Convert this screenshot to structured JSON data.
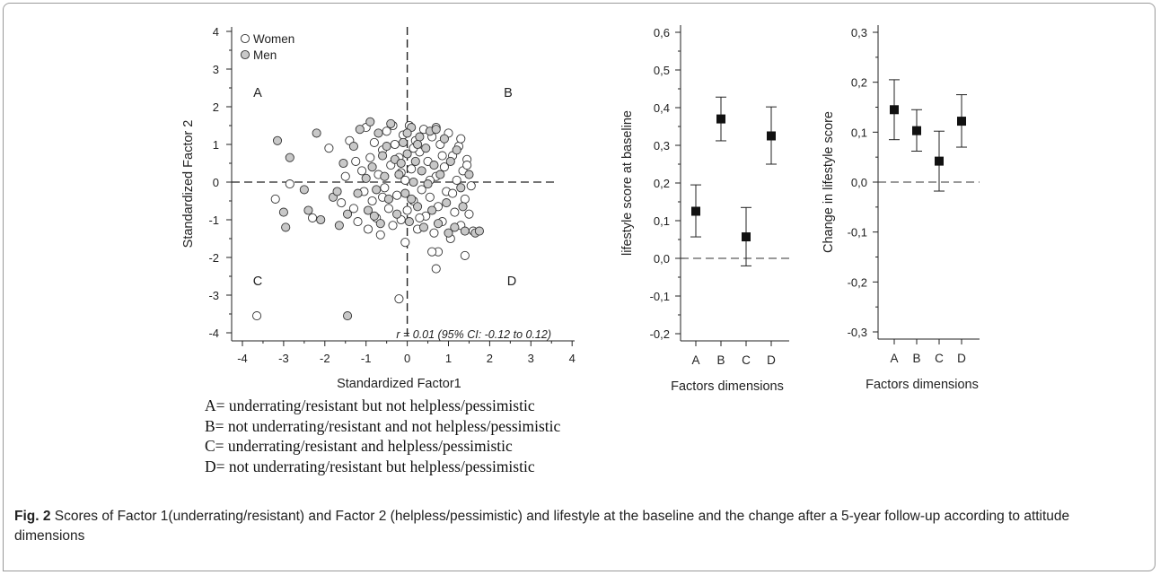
{
  "chart_data": [
    {
      "type": "scatter",
      "xlabel": "Standardized Factor1",
      "ylabel": "Standardized Factor 2",
      "xlim": [
        -4.2,
        3.6
      ],
      "ylim": [
        -4.2,
        4.2
      ],
      "xticks": [
        "-4",
        "-3",
        "-2",
        "-1",
        "0",
        "1",
        "2",
        "3",
        "4"
      ],
      "yticks": [
        "4",
        "3",
        "2",
        "1",
        "0",
        "-1",
        "-2",
        "-3",
        "-4"
      ],
      "legend": [
        {
          "label": "Women",
          "color": "#ffffff"
        },
        {
          "label": "Men",
          "color": "#c8c8c8"
        }
      ],
      "legend_position": "top-left",
      "quadrant_labels": [
        "A",
        "B",
        "C",
        "D"
      ],
      "annotation": "r = 0.01 (95% CI: -0.12 to 0.12)",
      "reference_lines": {
        "x": 0,
        "y": 0,
        "style": "dashed"
      },
      "series": [
        {
          "name": "Women",
          "points": [
            [
              -3.65,
              -3.55
            ],
            [
              -0.2,
              -3.1
            ],
            [
              -0.05,
              -1.6
            ],
            [
              0.7,
              -2.3
            ],
            [
              0.75,
              -1.85
            ],
            [
              0.6,
              -1.85
            ],
            [
              1.4,
              -1.95
            ],
            [
              -3.2,
              -0.45
            ],
            [
              -2.85,
              -0.05
            ],
            [
              -2.3,
              -0.95
            ],
            [
              -1.9,
              0.9
            ],
            [
              -1.6,
              -0.55
            ],
            [
              -1.5,
              0.15
            ],
            [
              -1.4,
              1.1
            ],
            [
              -1.3,
              -0.7
            ],
            [
              -1.25,
              0.55
            ],
            [
              -1.2,
              -1.05
            ],
            [
              -1.1,
              0.3
            ],
            [
              -1.05,
              -0.25
            ],
            [
              -1.0,
              1.45
            ],
            [
              -0.95,
              -1.25
            ],
            [
              -0.9,
              0.65
            ],
            [
              -0.85,
              -0.5
            ],
            [
              -0.8,
              1.05
            ],
            [
              -0.75,
              -0.95
            ],
            [
              -0.7,
              0.2
            ],
            [
              -0.65,
              -1.4
            ],
            [
              -0.6,
              0.85
            ],
            [
              -0.55,
              -0.15
            ],
            [
              -0.5,
              1.35
            ],
            [
              -0.45,
              -0.7
            ],
            [
              -0.4,
              0.45
            ],
            [
              -0.35,
              -1.15
            ],
            [
              -0.3,
              1.0
            ],
            [
              -0.25,
              -0.35
            ],
            [
              -0.2,
              0.65
            ],
            [
              -0.15,
              -1.0
            ],
            [
              -0.1,
              1.25
            ],
            [
              -0.05,
              0.05
            ],
            [
              0.0,
              -0.75
            ],
            [
              0.05,
              1.5
            ],
            [
              0.1,
              0.35
            ],
            [
              0.15,
              -0.5
            ],
            [
              0.2,
              1.1
            ],
            [
              0.25,
              -1.25
            ],
            [
              0.3,
              0.8
            ],
            [
              0.35,
              -0.2
            ],
            [
              0.4,
              1.4
            ],
            [
              0.45,
              -0.9
            ],
            [
              0.5,
              0.55
            ],
            [
              0.55,
              -0.4
            ],
            [
              0.6,
              1.2
            ],
            [
              0.65,
              -1.35
            ],
            [
              0.7,
              0.15
            ],
            [
              0.75,
              -0.65
            ],
            [
              0.8,
              1.0
            ],
            [
              0.85,
              -1.05
            ],
            [
              0.9,
              0.4
            ],
            [
              0.95,
              -0.25
            ],
            [
              1.0,
              1.3
            ],
            [
              1.05,
              -1.5
            ],
            [
              1.1,
              0.7
            ],
            [
              1.15,
              -0.8
            ],
            [
              1.2,
              0.05
            ],
            [
              1.25,
              0.95
            ],
            [
              1.3,
              -1.15
            ],
            [
              1.35,
              0.3
            ],
            [
              1.4,
              -0.45
            ],
            [
              1.45,
              0.6
            ],
            [
              1.5,
              -0.85
            ],
            [
              1.55,
              -0.1
            ],
            [
              1.6,
              -1.3
            ],
            [
              1.3,
              1.15
            ],
            [
              1.45,
              0.45
            ],
            [
              0.15,
              0.9
            ],
            [
              -0.15,
              0.25
            ],
            [
              0.55,
              0.05
            ],
            [
              0.85,
              0.7
            ],
            [
              0.3,
              -0.95
            ],
            [
              -0.6,
              -0.4
            ],
            [
              1.1,
              -0.3
            ],
            [
              0.7,
              1.45
            ],
            [
              -0.35,
              1.5
            ]
          ]
        },
        {
          "name": "Men",
          "points": [
            [
              -1.45,
              -3.55
            ],
            [
              -3.15,
              1.1
            ],
            [
              -2.85,
              0.65
            ],
            [
              -3.0,
              -0.8
            ],
            [
              -2.95,
              -1.2
            ],
            [
              -2.2,
              1.3
            ],
            [
              -2.5,
              -0.2
            ],
            [
              -2.1,
              -1.0
            ],
            [
              -2.4,
              -0.75
            ],
            [
              -1.8,
              -0.4
            ],
            [
              -1.7,
              -0.25
            ],
            [
              -1.65,
              -1.15
            ],
            [
              -1.55,
              0.5
            ],
            [
              -1.45,
              -0.85
            ],
            [
              -1.3,
              0.95
            ],
            [
              -1.2,
              -0.3
            ],
            [
              -1.15,
              1.4
            ],
            [
              -1.0,
              0.1
            ],
            [
              -0.95,
              -0.75
            ],
            [
              -0.9,
              1.6
            ],
            [
              -0.85,
              0.4
            ],
            [
              -0.75,
              -0.2
            ],
            [
              -0.7,
              1.3
            ],
            [
              -0.65,
              -1.1
            ],
            [
              -0.55,
              0.15
            ],
            [
              -0.5,
              0.95
            ],
            [
              -0.45,
              -0.45
            ],
            [
              -0.4,
              1.55
            ],
            [
              -0.3,
              0.6
            ],
            [
              -0.25,
              -0.85
            ],
            [
              -0.2,
              0.2
            ],
            [
              -0.1,
              1.05
            ],
            [
              -0.05,
              -0.3
            ],
            [
              0.0,
              0.75
            ],
            [
              0.05,
              -1.05
            ],
            [
              0.1,
              1.45
            ],
            [
              0.15,
              0.0
            ],
            [
              0.2,
              0.55
            ],
            [
              0.25,
              -0.65
            ],
            [
              0.3,
              1.2
            ],
            [
              0.35,
              0.3
            ],
            [
              0.4,
              -1.2
            ],
            [
              0.45,
              0.9
            ],
            [
              0.5,
              -0.05
            ],
            [
              0.55,
              1.35
            ],
            [
              0.6,
              -0.75
            ],
            [
              0.65,
              0.45
            ],
            [
              0.75,
              -1.1
            ],
            [
              0.8,
              0.2
            ],
            [
              0.9,
              1.15
            ],
            [
              0.95,
              -0.55
            ],
            [
              1.05,
              0.55
            ],
            [
              1.15,
              -1.2
            ],
            [
              1.2,
              0.85
            ],
            [
              1.3,
              -0.15
            ],
            [
              1.4,
              -1.3
            ],
            [
              1.5,
              0.2
            ],
            [
              1.65,
              -1.35
            ],
            [
              1.75,
              -1.3
            ],
            [
              1.35,
              -0.65
            ],
            [
              0.0,
              1.3
            ],
            [
              -0.15,
              0.5
            ],
            [
              0.25,
              1.0
            ],
            [
              -0.6,
              0.7
            ],
            [
              0.1,
              -0.45
            ],
            [
              0.7,
              1.4
            ],
            [
              -0.8,
              -0.9
            ],
            [
              1.0,
              -1.35
            ]
          ]
        }
      ]
    },
    {
      "type": "errorbar",
      "xlabel": "Factors dimensions",
      "ylabel": "lifestyle score at baseline",
      "ylim": [
        -0.2,
        0.6
      ],
      "yticks": [
        "0,6",
        "0,5",
        "0,4",
        "0,3",
        "0,2",
        "0,1",
        "0,0",
        "-0,1",
        "-0,2"
      ],
      "categories": [
        "A",
        "B",
        "C",
        "D"
      ],
      "values": [
        0.125,
        0.37,
        0.057,
        0.325
      ],
      "lower": [
        0.057,
        0.312,
        -0.02,
        0.25
      ],
      "upper": [
        0.195,
        0.428,
        0.135,
        0.402
      ],
      "reference_line_y": 0
    },
    {
      "type": "errorbar",
      "xlabel": "Factors dimensions",
      "ylabel": "Change in lifestyle score",
      "ylim": [
        -0.3,
        0.3
      ],
      "yticks": [
        "0,3",
        "0,2",
        "0,1",
        "0,0",
        "-0,1",
        "-0,2",
        "-0,3"
      ],
      "categories": [
        "A",
        "B",
        "C",
        "D"
      ],
      "values": [
        0.145,
        0.103,
        0.042,
        0.122
      ],
      "lower": [
        0.085,
        0.062,
        -0.018,
        0.07
      ],
      "upper": [
        0.205,
        0.145,
        0.102,
        0.175
      ],
      "reference_line_y": 0
    }
  ],
  "definitions": [
    "A= underrating/resistant but not helpless/pessimistic",
    "B= not underrating/resistant and not helpless/pessimistic",
    "C= underrating/resistant and helpless/pessimistic",
    "D= not underrating/resistant but helpless/pessimistic"
  ],
  "caption": {
    "label": "Fig. 2",
    "text": " Scores of Factor 1(underrating/resistant) and Factor 2 (helpless/pessimistic) and lifestyle at the baseline and the change after a 5-year follow-up according to attitude dimensions"
  }
}
